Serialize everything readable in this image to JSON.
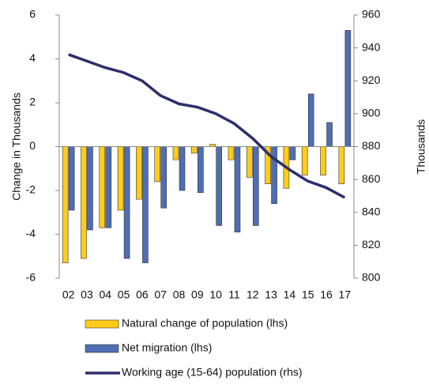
{
  "chart_data": {
    "type": "bar-line",
    "categories": [
      "02",
      "03",
      "04",
      "05",
      "06",
      "07",
      "08",
      "09",
      "10",
      "11",
      "12",
      "13",
      "14",
      "15",
      "16",
      "17"
    ],
    "ylabel": "Change in Thousands",
    "y2label": "Thousands",
    "ylim": [
      -6,
      6
    ],
    "yticks": [
      -6,
      -4,
      -2,
      0,
      2,
      4,
      6
    ],
    "y2lim": [
      800,
      960
    ],
    "y2ticks": [
      800,
      820,
      840,
      860,
      880,
      900,
      920,
      940,
      960
    ],
    "series": [
      {
        "name": "Natural change of population (lhs)",
        "type": "bar",
        "color": "#ffcc1a",
        "values": [
          -5.3,
          -5.1,
          -3.7,
          -2.9,
          -2.4,
          -1.6,
          -0.6,
          -0.3,
          0.1,
          -0.6,
          -1.4,
          -1.7,
          -1.9,
          -1.3,
          -1.3,
          -1.7
        ]
      },
      {
        "name": "Net migration (lhs)",
        "type": "bar",
        "color": "#4f6eb3",
        "values": [
          -2.9,
          -3.8,
          -3.7,
          -5.1,
          -5.3,
          -2.8,
          -2.0,
          -2.1,
          -3.6,
          -3.9,
          -3.6,
          -2.6,
          -0.6,
          2.4,
          1.1,
          5.3
        ]
      },
      {
        "name": "Working age (15-64) population (rhs)",
        "type": "line",
        "axis": "y2",
        "color": "#2b2f6b",
        "values": [
          936,
          932,
          928,
          925,
          920,
          911,
          906,
          904,
          900,
          894,
          885,
          874,
          866,
          859,
          855,
          849
        ]
      }
    ]
  }
}
